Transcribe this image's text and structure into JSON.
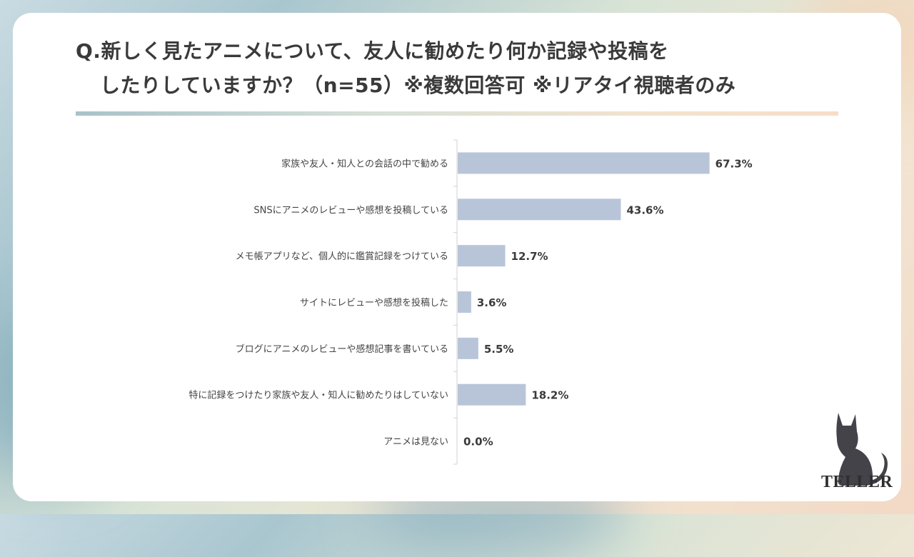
{
  "title": {
    "line1": "Q.新しく見たアニメについて、友人に勧めたり何か記録や投稿を",
    "line2": "したりしていますか？（n=55）※複数回答可 ※リアタイ視聴者のみ"
  },
  "chart_data": {
    "type": "bar",
    "orientation": "horizontal",
    "categories": [
      "家族や友人・知人との会話の中で勧める",
      "SNSにアニメのレビューや感想を投稿している",
      "メモ帳アプリなど、個人的に鑑賞記録をつけている",
      "サイトにレビューや感想を投稿した",
      "ブログにアニメのレビューや感想記事を書いている",
      "特に記録をつけたり家族や友人・知人に勧めたりはしていない",
      "アニメは見ない"
    ],
    "values": [
      67.3,
      43.6,
      12.7,
      3.6,
      5.5,
      18.2,
      0.0
    ],
    "value_labels": [
      "67.3%",
      "43.6%",
      "12.7%",
      "3.6%",
      "5.5%",
      "18.2%",
      "0.0%"
    ],
    "xlim": [
      0,
      100
    ],
    "bar_color": "#b8c5d9",
    "grid": false,
    "legend": "none"
  },
  "logo": {
    "text": "TELLER"
  }
}
